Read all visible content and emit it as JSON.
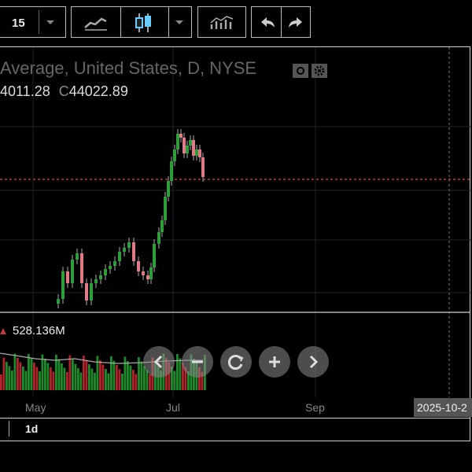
{
  "toolbar": {
    "interval_value": "15",
    "icons": [
      "chevron-down-icon",
      "line-chart-icon",
      "candlestick-icon",
      "chevron-down-icon",
      "indicators-icon",
      "undo-icon",
      "redo-icon"
    ]
  },
  "legend": {
    "title": "Average, United States, D, NYSE",
    "open_partial": "4011.28",
    "close_prefix": "C",
    "close_value": "44022.89"
  },
  "volume": {
    "label": "528.136M"
  },
  "x_axis": {
    "ticks": [
      "May",
      "Jul",
      "Sep"
    ],
    "crosshair_date": "2025-10-2"
  },
  "bottom_bar": {
    "interval": "1d"
  },
  "colors": {
    "up": "#2e9e3a",
    "down": "#e07b85",
    "price_line": "#c0393d",
    "frame": "#cfcfcf",
    "background": "#000000"
  },
  "navigation": [
    "zoom-out-icon",
    "reset-icon",
    "zoom-in-icon",
    "scroll-right-icon"
  ]
}
